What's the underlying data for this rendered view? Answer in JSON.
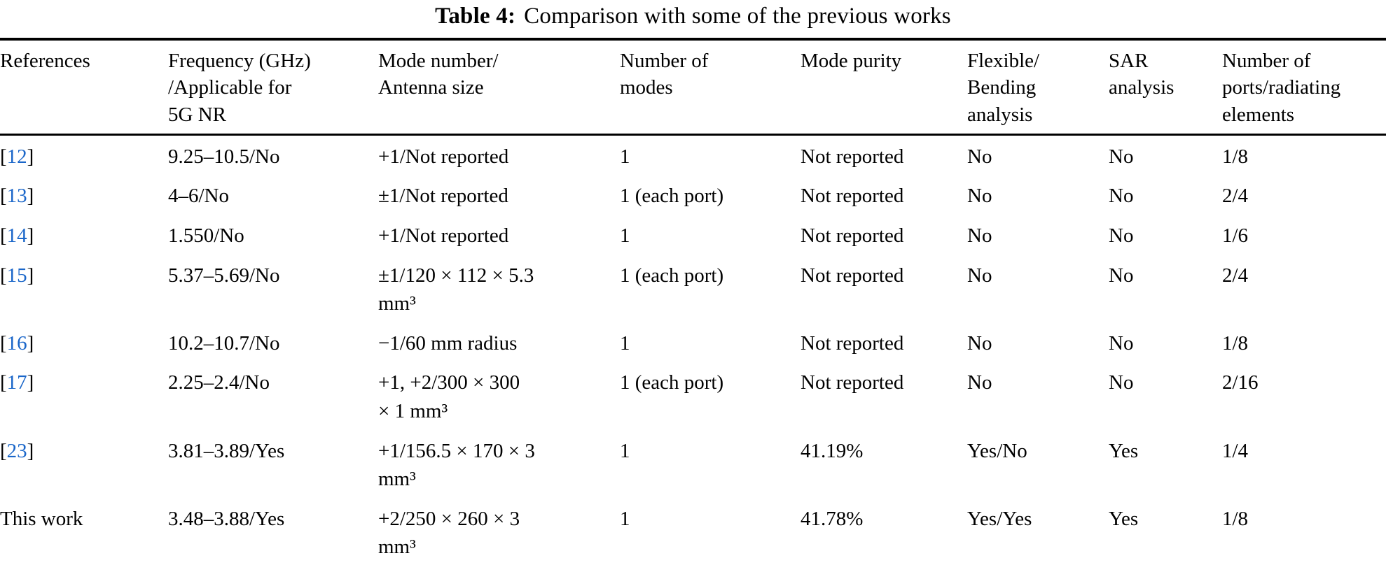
{
  "title": {
    "label": "Table 4:",
    "text": "Comparison with some of the previous works"
  },
  "colors": {
    "link": "#1a66c9",
    "text": "#000000",
    "rule": "#000000",
    "background": "#ffffff"
  },
  "citation": {
    "open": "[",
    "close": "]"
  },
  "columns": [
    {
      "label": "References"
    },
    {
      "label": "Frequency (GHz)\n/Applicable for\n5G NR"
    },
    {
      "label": "Mode number/\nAntenna size"
    },
    {
      "label": "Number of\nmodes"
    },
    {
      "label": "Mode purity"
    },
    {
      "label": "Flexible/\nBending\nanalysis"
    },
    {
      "label": "SAR\nanalysis"
    },
    {
      "label": "Number of\nports/radiating\nelements"
    }
  ],
  "rows": [
    {
      "ref": {
        "text": "12",
        "linked": true
      },
      "cells": [
        "9.25–10.5/No",
        "+1/Not reported",
        "1",
        "Not reported",
        "No",
        "No",
        "1/8"
      ]
    },
    {
      "ref": {
        "text": "13",
        "linked": true
      },
      "cells": [
        "4–6/No",
        "±1/Not reported",
        "1 (each port)",
        "Not reported",
        "No",
        "No",
        "2/4"
      ]
    },
    {
      "ref": {
        "text": "14",
        "linked": true
      },
      "cells": [
        "1.550/No",
        "+1/Not reported",
        "1",
        "Not reported",
        "No",
        "No",
        "1/6"
      ]
    },
    {
      "ref": {
        "text": "15",
        "linked": true
      },
      "cells": [
        "5.37–5.69/No",
        "±1/120 × 112 × 5.3\nmm³",
        "1 (each port)",
        "Not reported",
        "No",
        "No",
        "2/4"
      ]
    },
    {
      "ref": {
        "text": "16",
        "linked": true
      },
      "cells": [
        "10.2–10.7/No",
        "−1/60 mm radius",
        "1",
        "Not reported",
        "No",
        "No",
        "1/8"
      ]
    },
    {
      "ref": {
        "text": "17",
        "linked": true
      },
      "cells": [
        "2.25–2.4/No",
        "+1, +2/300 × 300\n× 1 mm³",
        "1 (each port)",
        "Not reported",
        "No",
        "No",
        "2/16"
      ]
    },
    {
      "ref": {
        "text": "23",
        "linked": true
      },
      "cells": [
        "3.81–3.89/Yes",
        "+1/156.5 × 170 × 3\nmm³",
        "1",
        "41.19%",
        "Yes/No",
        "Yes",
        "1/4"
      ]
    },
    {
      "ref": {
        "text": "This work",
        "linked": false
      },
      "cells": [
        "3.48–3.88/Yes",
        "+2/250 × 260 × 3\nmm³",
        "1",
        "41.78%",
        "Yes/Yes",
        "Yes",
        "1/8"
      ]
    }
  ]
}
